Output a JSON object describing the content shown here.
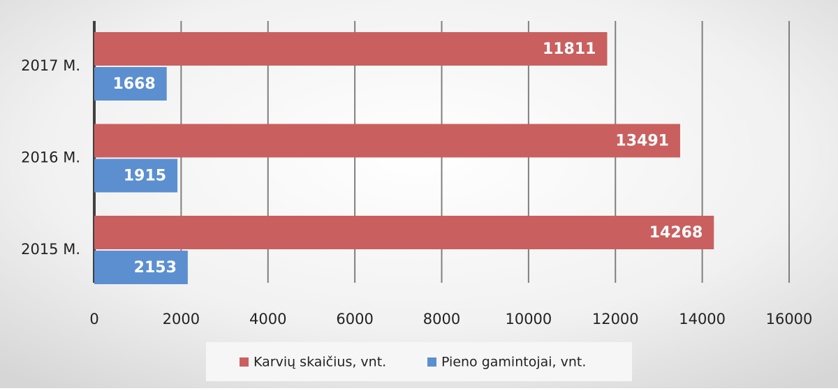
{
  "chart_data": {
    "type": "bar",
    "orientation": "horizontal",
    "categories": [
      "2015 M.",
      "2016 M.",
      "2017 M."
    ],
    "series": [
      {
        "name": "Karvių skaičius, vnt.",
        "color": "#c9605f",
        "values": [
          14268,
          13491,
          11811
        ]
      },
      {
        "name": "Pieno gamintojai, vnt.",
        "color": "#5b8fd0",
        "values": [
          2153,
          1915,
          1668
        ]
      }
    ],
    "xlim": [
      0,
      16000
    ],
    "xticks": [
      0,
      2000,
      4000,
      6000,
      8000,
      10000,
      12000,
      14000,
      16000
    ],
    "grid": true,
    "legend": "bottom"
  }
}
